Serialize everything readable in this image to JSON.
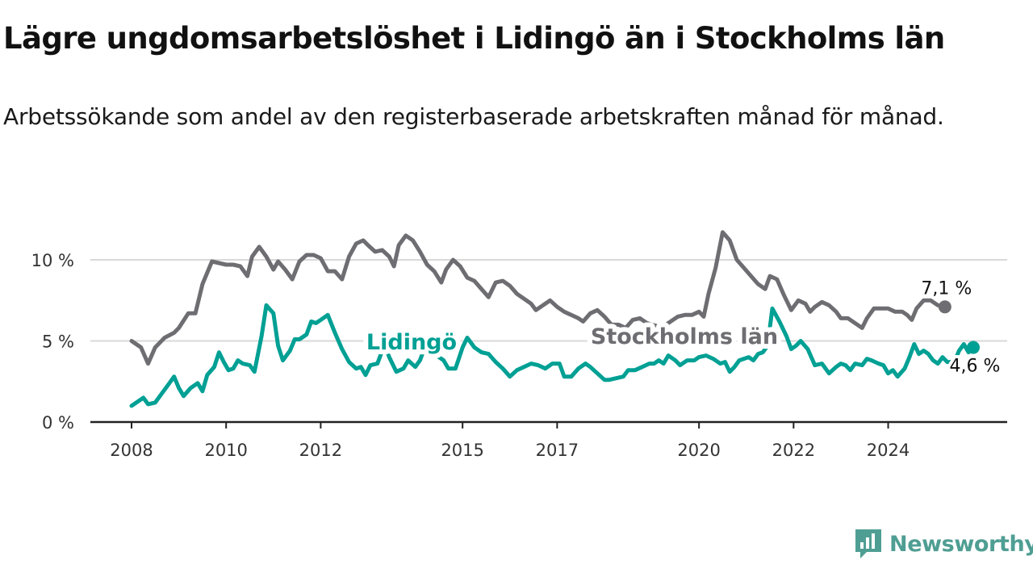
{
  "title": "Lägre ungdomsarbetslöshet i Lidingö än i Stockholms län",
  "subtitle": "Arbetssökande som andel av den registerbaserade arbetskraften månad för månad.",
  "brand": {
    "name": "Newsworthy",
    "icon": "newsworthy-logo-icon",
    "color": "#4f9e93"
  },
  "chart_data": {
    "type": "line",
    "title": "Lägre ungdomsarbetslöshet i Lidingö än i Stockholms län",
    "xlabel": "",
    "ylabel": "",
    "xlim": [
      2008.0,
      2025.8
    ],
    "ylim": [
      0,
      12
    ],
    "x_ticks": [
      {
        "value": 2008,
        "label": "2008"
      },
      {
        "value": 2010,
        "label": "2010"
      },
      {
        "value": 2012,
        "label": "2012"
      },
      {
        "value": 2015,
        "label": "2015"
      },
      {
        "value": 2017,
        "label": "2017"
      },
      {
        "value": 2020,
        "label": "2020"
      },
      {
        "value": 2022,
        "label": "2022"
      },
      {
        "value": 2024,
        "label": "2024"
      }
    ],
    "y_ticks": [
      {
        "value": 0,
        "label": "0 %"
      },
      {
        "value": 5,
        "label": "5 %"
      },
      {
        "value": 10,
        "label": "10 %"
      }
    ],
    "grid": true,
    "series": [
      {
        "name": "Stockholms län",
        "color": "#6e6d72",
        "end_label": "7,1 %",
        "points": [
          [
            2008.0,
            5.0
          ],
          [
            2008.2,
            4.6
          ],
          [
            2008.35,
            3.6
          ],
          [
            2008.5,
            4.6
          ],
          [
            2008.7,
            5.2
          ],
          [
            2008.9,
            5.5
          ],
          [
            2009.0,
            5.8
          ],
          [
            2009.2,
            6.7
          ],
          [
            2009.35,
            6.7
          ],
          [
            2009.5,
            8.5
          ],
          [
            2009.7,
            9.9
          ],
          [
            2009.85,
            9.8
          ],
          [
            2010.0,
            9.7
          ],
          [
            2010.15,
            9.7
          ],
          [
            2010.3,
            9.6
          ],
          [
            2010.45,
            9.0
          ],
          [
            2010.55,
            10.2
          ],
          [
            2010.7,
            10.8
          ],
          [
            2010.85,
            10.2
          ],
          [
            2011.0,
            9.4
          ],
          [
            2011.1,
            9.9
          ],
          [
            2011.25,
            9.4
          ],
          [
            2011.4,
            8.8
          ],
          [
            2011.55,
            9.9
          ],
          [
            2011.7,
            10.3
          ],
          [
            2011.85,
            10.3
          ],
          [
            2012.0,
            10.1
          ],
          [
            2012.15,
            9.3
          ],
          [
            2012.3,
            9.3
          ],
          [
            2012.45,
            8.8
          ],
          [
            2012.6,
            10.2
          ],
          [
            2012.75,
            11.0
          ],
          [
            2012.9,
            11.2
          ],
          [
            2013.0,
            10.9
          ],
          [
            2013.15,
            10.5
          ],
          [
            2013.3,
            10.6
          ],
          [
            2013.45,
            10.2
          ],
          [
            2013.55,
            9.6
          ],
          [
            2013.65,
            10.9
          ],
          [
            2013.8,
            11.5
          ],
          [
            2013.95,
            11.2
          ],
          [
            2014.1,
            10.5
          ],
          [
            2014.25,
            9.7
          ],
          [
            2014.4,
            9.3
          ],
          [
            2014.55,
            8.6
          ],
          [
            2014.65,
            9.4
          ],
          [
            2014.8,
            10.0
          ],
          [
            2014.95,
            9.6
          ],
          [
            2015.1,
            8.9
          ],
          [
            2015.25,
            8.7
          ],
          [
            2015.4,
            8.2
          ],
          [
            2015.55,
            7.7
          ],
          [
            2015.7,
            8.6
          ],
          [
            2015.85,
            8.7
          ],
          [
            2016.0,
            8.4
          ],
          [
            2016.15,
            7.9
          ],
          [
            2016.3,
            7.6
          ],
          [
            2016.45,
            7.3
          ],
          [
            2016.55,
            6.9
          ],
          [
            2016.7,
            7.2
          ],
          [
            2016.85,
            7.5
          ],
          [
            2017.0,
            7.1
          ],
          [
            2017.15,
            6.8
          ],
          [
            2017.3,
            6.6
          ],
          [
            2017.45,
            6.4
          ],
          [
            2017.55,
            6.2
          ],
          [
            2017.7,
            6.7
          ],
          [
            2017.85,
            6.9
          ],
          [
            2018.0,
            6.5
          ],
          [
            2018.15,
            6.0
          ],
          [
            2018.3,
            6.0
          ],
          [
            2018.45,
            5.8
          ],
          [
            2018.6,
            6.3
          ],
          [
            2018.75,
            6.4
          ],
          [
            2018.9,
            6.1
          ],
          [
            2019.0,
            6.0
          ],
          [
            2019.15,
            5.9
          ],
          [
            2019.3,
            6.0
          ],
          [
            2019.45,
            6.3
          ],
          [
            2019.55,
            6.5
          ],
          [
            2019.7,
            6.6
          ],
          [
            2019.85,
            6.6
          ],
          [
            2020.0,
            6.8
          ],
          [
            2020.1,
            6.5
          ],
          [
            2020.2,
            7.9
          ],
          [
            2020.35,
            9.5
          ],
          [
            2020.5,
            11.7
          ],
          [
            2020.65,
            11.2
          ],
          [
            2020.8,
            10.0
          ],
          [
            2020.95,
            9.5
          ],
          [
            2021.1,
            9.0
          ],
          [
            2021.25,
            8.5
          ],
          [
            2021.4,
            8.2
          ],
          [
            2021.5,
            9.0
          ],
          [
            2021.65,
            8.8
          ],
          [
            2021.8,
            7.8
          ],
          [
            2021.95,
            6.9
          ],
          [
            2022.1,
            7.5
          ],
          [
            2022.25,
            7.3
          ],
          [
            2022.35,
            6.8
          ],
          [
            2022.45,
            7.1
          ],
          [
            2022.6,
            7.4
          ],
          [
            2022.75,
            7.2
          ],
          [
            2022.9,
            6.8
          ],
          [
            2023.0,
            6.4
          ],
          [
            2023.15,
            6.4
          ],
          [
            2023.3,
            6.1
          ],
          [
            2023.45,
            5.8
          ],
          [
            2023.55,
            6.4
          ],
          [
            2023.7,
            7.0
          ],
          [
            2023.85,
            7.0
          ],
          [
            2024.0,
            7.0
          ],
          [
            2024.15,
            6.8
          ],
          [
            2024.3,
            6.8
          ],
          [
            2024.4,
            6.6
          ],
          [
            2024.5,
            6.3
          ],
          [
            2024.6,
            7.0
          ],
          [
            2024.75,
            7.5
          ],
          [
            2024.9,
            7.5
          ],
          [
            2025.05,
            7.2
          ],
          [
            2025.2,
            7.1
          ]
        ]
      },
      {
        "name": "Lidingö",
        "color": "#00a094",
        "end_label": "4,6 %",
        "points": [
          [
            2008.0,
            1.0
          ],
          [
            2008.15,
            1.3
          ],
          [
            2008.25,
            1.5
          ],
          [
            2008.35,
            1.1
          ],
          [
            2008.5,
            1.2
          ],
          [
            2008.65,
            1.8
          ],
          [
            2008.8,
            2.4
          ],
          [
            2008.9,
            2.8
          ],
          [
            2009.0,
            2.1
          ],
          [
            2009.1,
            1.6
          ],
          [
            2009.25,
            2.1
          ],
          [
            2009.4,
            2.4
          ],
          [
            2009.5,
            1.9
          ],
          [
            2009.6,
            2.9
          ],
          [
            2009.75,
            3.4
          ],
          [
            2009.85,
            4.3
          ],
          [
            2009.95,
            3.7
          ],
          [
            2010.05,
            3.2
          ],
          [
            2010.15,
            3.3
          ],
          [
            2010.25,
            3.8
          ],
          [
            2010.35,
            3.6
          ],
          [
            2010.5,
            3.5
          ],
          [
            2010.6,
            3.1
          ],
          [
            2010.75,
            5.3
          ],
          [
            2010.85,
            7.2
          ],
          [
            2011.0,
            6.7
          ],
          [
            2011.1,
            4.7
          ],
          [
            2011.2,
            3.8
          ],
          [
            2011.35,
            4.4
          ],
          [
            2011.45,
            5.1
          ],
          [
            2011.55,
            5.1
          ],
          [
            2011.7,
            5.4
          ],
          [
            2011.8,
            6.2
          ],
          [
            2011.9,
            6.1
          ],
          [
            2012.0,
            6.3
          ],
          [
            2012.15,
            6.6
          ],
          [
            2012.3,
            5.5
          ],
          [
            2012.45,
            4.5
          ],
          [
            2012.6,
            3.7
          ],
          [
            2012.75,
            3.3
          ],
          [
            2012.85,
            3.4
          ],
          [
            2012.95,
            2.9
          ],
          [
            2013.05,
            3.5
          ],
          [
            2013.2,
            3.6
          ],
          [
            2013.35,
            4.8
          ],
          [
            2013.45,
            4.0
          ],
          [
            2013.6,
            3.1
          ],
          [
            2013.75,
            3.3
          ],
          [
            2013.85,
            3.8
          ],
          [
            2014.0,
            3.4
          ],
          [
            2014.1,
            3.8
          ],
          [
            2014.2,
            4.6
          ],
          [
            2014.3,
            4.8
          ],
          [
            2014.45,
            4.1
          ],
          [
            2014.6,
            3.8
          ],
          [
            2014.7,
            3.3
          ],
          [
            2014.85,
            3.3
          ],
          [
            2015.0,
            4.6
          ],
          [
            2015.1,
            5.2
          ],
          [
            2015.25,
            4.6
          ],
          [
            2015.4,
            4.3
          ],
          [
            2015.55,
            4.2
          ],
          [
            2015.7,
            3.7
          ],
          [
            2015.85,
            3.3
          ],
          [
            2016.0,
            2.8
          ],
          [
            2016.15,
            3.2
          ],
          [
            2016.3,
            3.4
          ],
          [
            2016.45,
            3.6
          ],
          [
            2016.6,
            3.5
          ],
          [
            2016.75,
            3.3
          ],
          [
            2016.9,
            3.6
          ],
          [
            2017.05,
            3.6
          ],
          [
            2017.15,
            2.8
          ],
          [
            2017.3,
            2.8
          ],
          [
            2017.45,
            3.3
          ],
          [
            2017.6,
            3.6
          ],
          [
            2017.7,
            3.4
          ],
          [
            2017.85,
            3.0
          ],
          [
            2018.0,
            2.6
          ],
          [
            2018.1,
            2.6
          ],
          [
            2018.25,
            2.7
          ],
          [
            2018.4,
            2.8
          ],
          [
            2018.5,
            3.2
          ],
          [
            2018.65,
            3.2
          ],
          [
            2018.8,
            3.4
          ],
          [
            2018.95,
            3.6
          ],
          [
            2019.05,
            3.6
          ],
          [
            2019.15,
            3.8
          ],
          [
            2019.25,
            3.6
          ],
          [
            2019.35,
            4.1
          ],
          [
            2019.5,
            3.8
          ],
          [
            2019.6,
            3.5
          ],
          [
            2019.75,
            3.8
          ],
          [
            2019.9,
            3.8
          ],
          [
            2020.0,
            4.0
          ],
          [
            2020.15,
            4.1
          ],
          [
            2020.3,
            3.9
          ],
          [
            2020.45,
            3.6
          ],
          [
            2020.55,
            3.7
          ],
          [
            2020.65,
            3.1
          ],
          [
            2020.75,
            3.4
          ],
          [
            2020.85,
            3.8
          ],
          [
            2020.95,
            3.9
          ],
          [
            2021.05,
            4.0
          ],
          [
            2021.15,
            3.8
          ],
          [
            2021.25,
            4.2
          ],
          [
            2021.35,
            4.3
          ],
          [
            2021.45,
            4.7
          ],
          [
            2021.55,
            7.0
          ],
          [
            2021.7,
            6.2
          ],
          [
            2021.85,
            5.3
          ],
          [
            2021.95,
            4.5
          ],
          [
            2022.05,
            4.7
          ],
          [
            2022.15,
            5.0
          ],
          [
            2022.3,
            4.5
          ],
          [
            2022.45,
            3.5
          ],
          [
            2022.6,
            3.6
          ],
          [
            2022.75,
            3.0
          ],
          [
            2022.9,
            3.4
          ],
          [
            2023.0,
            3.6
          ],
          [
            2023.1,
            3.5
          ],
          [
            2023.2,
            3.2
          ],
          [
            2023.3,
            3.6
          ],
          [
            2023.45,
            3.5
          ],
          [
            2023.55,
            3.9
          ],
          [
            2023.65,
            3.8
          ],
          [
            2023.8,
            3.6
          ],
          [
            2023.9,
            3.5
          ],
          [
            2024.0,
            3.0
          ],
          [
            2024.1,
            3.2
          ],
          [
            2024.2,
            2.8
          ],
          [
            2024.35,
            3.3
          ],
          [
            2024.45,
            4.0
          ],
          [
            2024.55,
            4.8
          ],
          [
            2024.65,
            4.2
          ],
          [
            2024.75,
            4.4
          ],
          [
            2024.85,
            4.2
          ],
          [
            2024.95,
            3.8
          ],
          [
            2025.05,
            3.6
          ],
          [
            2025.15,
            4.0
          ],
          [
            2025.25,
            3.7
          ],
          [
            2025.4,
            3.7
          ],
          [
            2025.5,
            4.4
          ],
          [
            2025.6,
            4.8
          ],
          [
            2025.7,
            4.3
          ],
          [
            2025.8,
            4.6
          ]
        ]
      }
    ]
  }
}
